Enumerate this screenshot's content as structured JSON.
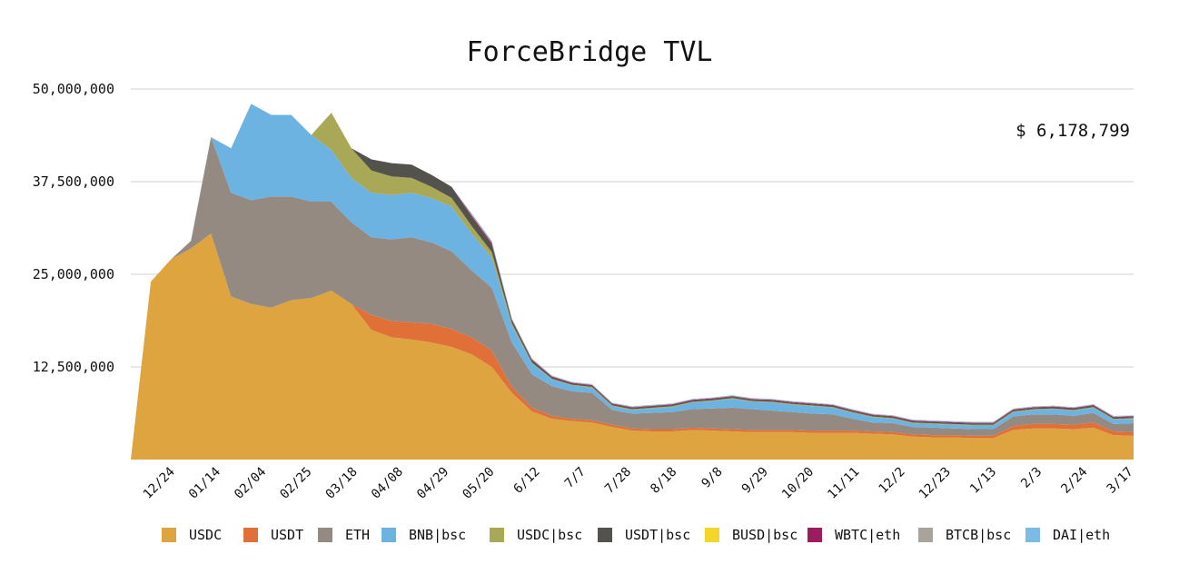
{
  "title": "ForceBridge TVL",
  "total_label": "$ 6,178,799",
  "chart_data": {
    "type": "area",
    "stacked": true,
    "title": "ForceBridge TVL",
    "ylim": [
      0,
      50000000
    ],
    "yticks": [
      12500000,
      25000000,
      37500000,
      50000000
    ],
    "ytick_labels": [
      "12,500,000",
      "25,000,000",
      "37,500,000",
      "50,000,000"
    ],
    "x_tick_labels": [
      "12/24",
      "01/14",
      "02/04",
      "02/25",
      "03/18",
      "04/08",
      "04/29",
      "05/20",
      "6/12",
      "7/7",
      "7/28",
      "8/18",
      "9/8",
      "9/29",
      "10/20",
      "11/11",
      "12/2",
      "12/23",
      "1/13",
      "2/3",
      "2/24",
      "3/17"
    ],
    "grid": true,
    "legend_position": "bottom",
    "x": [
      "12/3",
      "12/17",
      "12/24",
      "1/7",
      "1/14",
      "1/21",
      "1/28",
      "2/04",
      "2/11",
      "2/18",
      "2/25",
      "3/04",
      "3/11",
      "3/18",
      "3/25",
      "4/01",
      "4/08",
      "4/15",
      "4/22",
      "4/29",
      "5/06",
      "5/13",
      "5/20",
      "5/27",
      "6/12",
      "6/26",
      "7/7",
      "7/17",
      "7/28",
      "8/7",
      "8/18",
      "8/28",
      "9/8",
      "9/18",
      "9/29",
      "10/9",
      "10/20",
      "10/31",
      "11/11",
      "11/21",
      "12/2",
      "12/12",
      "12/23",
      "1/2",
      "1/13",
      "1/23",
      "2/3",
      "2/13",
      "2/24",
      "3/6",
      "3/17"
    ],
    "series": [
      {
        "name": "USDC",
        "color": "#dda440",
        "values": [
          0,
          24000000,
          27000000,
          28500000,
          30500000,
          22000000,
          21000000,
          20500000,
          21500000,
          21800000,
          22800000,
          21000000,
          17500000,
          16500000,
          16200000,
          15800000,
          15200000,
          14200000,
          12500000,
          9000000,
          6500000,
          5500000,
          5200000,
          5000000,
          4400000,
          3900000,
          3800000,
          3800000,
          4000000,
          3900000,
          3800000,
          3700000,
          3700000,
          3700000,
          3600000,
          3600000,
          3600000,
          3500000,
          3400000,
          3100000,
          3000000,
          3000000,
          2900000,
          2900000,
          4000000,
          4200000,
          4200000,
          4100000,
          4300000,
          3300000,
          3200000
        ]
      },
      {
        "name": "USDT",
        "color": "#e07038",
        "values": [
          0,
          0,
          0,
          0,
          0,
          0,
          0,
          0,
          0,
          0,
          0,
          0,
          2000000,
          2200000,
          2300000,
          2500000,
          2400000,
          2300000,
          2200000,
          800000,
          500000,
          400000,
          300000,
          300000,
          300000,
          300000,
          300000,
          300000,
          300000,
          300000,
          300000,
          300000,
          300000,
          300000,
          300000,
          300000,
          300000,
          300000,
          300000,
          300000,
          300000,
          300000,
          300000,
          300000,
          500000,
          600000,
          600000,
          600000,
          700000,
          500000,
          500000
        ]
      },
      {
        "name": "ETH",
        "color": "#958a82",
        "values": [
          0,
          0,
          0,
          1000000,
          13000000,
          14000000,
          14000000,
          15000000,
          14000000,
          13000000,
          12000000,
          11000000,
          10500000,
          11000000,
          11500000,
          11000000,
          10500000,
          9000000,
          8500000,
          6000000,
          4500000,
          4000000,
          3700000,
          3700000,
          2000000,
          2000000,
          2200000,
          2300000,
          2500000,
          2700000,
          2900000,
          2800000,
          2600000,
          2400000,
          2300000,
          2200000,
          1600000,
          1200000,
          1200000,
          1000000,
          1000000,
          900000,
          900000,
          900000,
          1300000,
          1300000,
          1300000,
          1200000,
          1300000,
          1000000,
          1200000
        ]
      },
      {
        "name": "BNB|bsc",
        "color": "#6db3e2",
        "values": [
          0,
          0,
          0,
          0,
          0,
          6000000,
          13000000,
          11000000,
          11000000,
          9000000,
          7000000,
          6000000,
          6000000,
          6000000,
          6000000,
          6000000,
          6000000,
          5000000,
          4000000,
          2300000,
          1500000,
          900000,
          800000,
          700000,
          500000,
          500000,
          600000,
          700000,
          900000,
          1000000,
          1200000,
          1000000,
          1100000,
          1000000,
          1000000,
          900000,
          800000,
          700000,
          600000,
          500000,
          500000,
          500000,
          500000,
          500000,
          600000,
          600000,
          700000,
          700000,
          700000,
          600000,
          600000
        ]
      },
      {
        "name": "USDC|bsc",
        "color": "#a8a856",
        "values": [
          0,
          0,
          0,
          0,
          0,
          0,
          0,
          0,
          0,
          0,
          5000000,
          4000000,
          3000000,
          2500000,
          2000000,
          1500000,
          1200000,
          1000000,
          800000,
          300000,
          100000,
          100000,
          100000,
          100000,
          100000,
          100000,
          100000,
          100000,
          100000,
          100000,
          100000,
          100000,
          100000,
          100000,
          100000,
          100000,
          100000,
          100000,
          100000,
          100000,
          100000,
          100000,
          100000,
          100000,
          100000,
          100000,
          100000,
          100000,
          100000,
          100000,
          100000
        ]
      },
      {
        "name": "USDT|bsc",
        "color": "#54524c",
        "values": [
          0,
          0,
          0,
          0,
          0,
          0,
          0,
          0,
          0,
          0,
          0,
          0,
          1500000,
          1800000,
          1800000,
          1600000,
          1500000,
          1200000,
          1000000,
          400000,
          300000,
          200000,
          150000,
          150000,
          150000,
          150000,
          150000,
          150000,
          150000,
          150000,
          150000,
          150000,
          150000,
          150000,
          150000,
          150000,
          150000,
          150000,
          150000,
          150000,
          150000,
          150000,
          150000,
          150000,
          150000,
          150000,
          150000,
          150000,
          150000,
          150000,
          150000
        ]
      },
      {
        "name": "BUSD|bsc",
        "color": "#f4d62a",
        "values": [
          0,
          0,
          0,
          0,
          0,
          0,
          0,
          0,
          0,
          0,
          0,
          0,
          0,
          0,
          0,
          0,
          0,
          0,
          0,
          0,
          0,
          0,
          0,
          0,
          0,
          0,
          0,
          0,
          0,
          0,
          0,
          0,
          0,
          0,
          0,
          0,
          0,
          0,
          0,
          0,
          0,
          0,
          0,
          0,
          0,
          0,
          0,
          0,
          0,
          0,
          0
        ]
      },
      {
        "name": "WBTC|eth",
        "color": "#9b1d5e",
        "values": [
          0,
          0,
          0,
          0,
          0,
          0,
          0,
          0,
          0,
          0,
          0,
          0,
          0,
          0,
          0,
          0,
          0,
          200000,
          200000,
          100000,
          100000,
          100000,
          100000,
          100000,
          100000,
          100000,
          100000,
          100000,
          100000,
          100000,
          100000,
          100000,
          100000,
          100000,
          100000,
          100000,
          100000,
          100000,
          100000,
          100000,
          100000,
          100000,
          100000,
          100000,
          100000,
          100000,
          100000,
          100000,
          100000,
          100000,
          100000
        ]
      },
      {
        "name": "BTCB|bsc",
        "color": "#aaa39b",
        "values": [
          0,
          0,
          0,
          0,
          0,
          0,
          0,
          0,
          0,
          0,
          0,
          0,
          0,
          0,
          0,
          0,
          0,
          200000,
          200000,
          100000,
          100000,
          80000,
          80000,
          80000,
          80000,
          80000,
          80000,
          80000,
          80000,
          80000,
          80000,
          80000,
          80000,
          80000,
          80000,
          80000,
          80000,
          80000,
          80000,
          80000,
          80000,
          80000,
          80000,
          80000,
          80000,
          80000,
          80000,
          80000,
          80000,
          80000,
          80000
        ]
      },
      {
        "name": "DAI|eth",
        "color": "#7bbbe6",
        "values": [
          0,
          0,
          0,
          0,
          0,
          0,
          0,
          0,
          0,
          0,
          0,
          0,
          0,
          0,
          0,
          0,
          0,
          100000,
          100000,
          50000,
          50000,
          50000,
          50000,
          50000,
          50000,
          50000,
          50000,
          50000,
          50000,
          50000,
          50000,
          50000,
          50000,
          50000,
          50000,
          50000,
          50000,
          50000,
          50000,
          50000,
          50000,
          50000,
          50000,
          50000,
          50000,
          50000,
          50000,
          50000,
          50000,
          50000,
          50000
        ]
      }
    ]
  }
}
